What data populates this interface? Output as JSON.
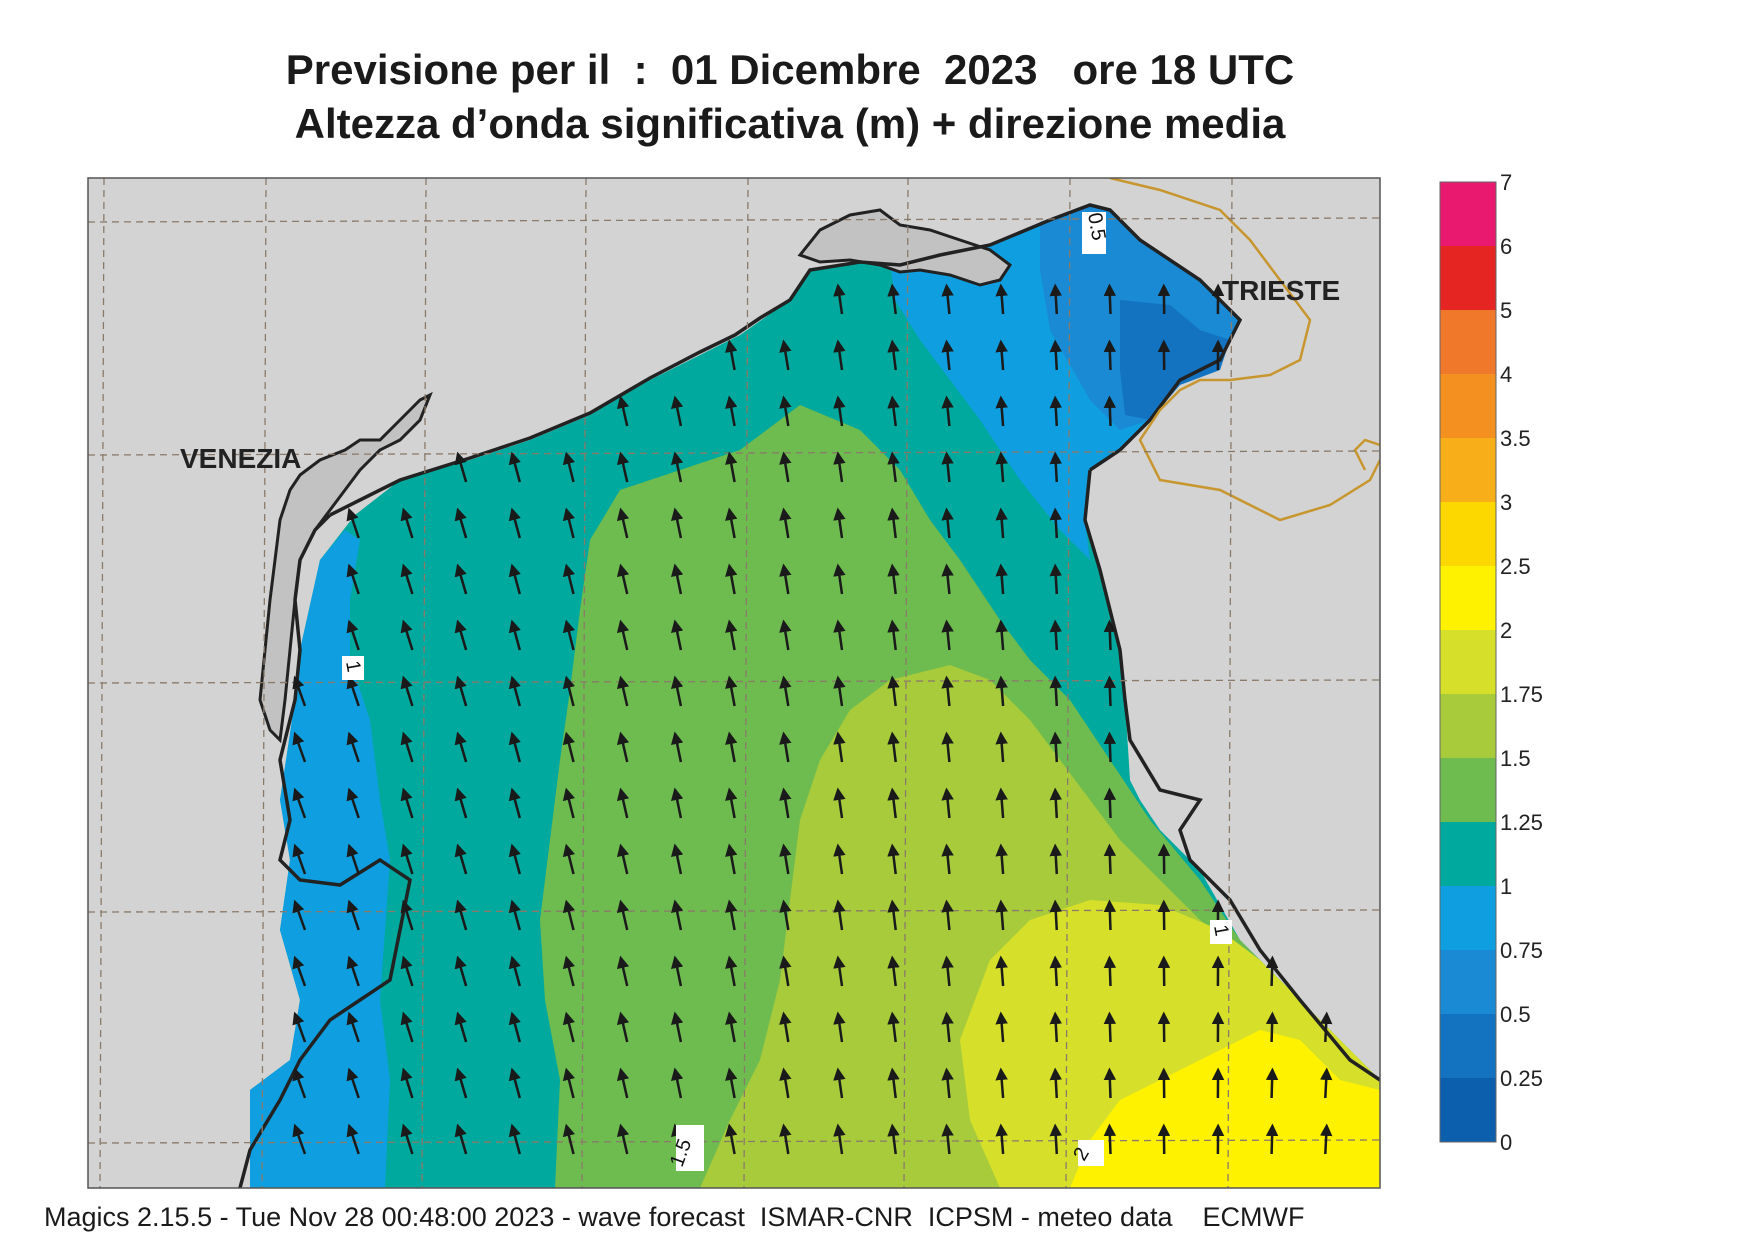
{
  "title": {
    "line1": "Previsione per il  :  01 Dicembre  2023   ore 18 UTC",
    "line2": "Altezza d’onda significativa (m) + direzione media"
  },
  "map": {
    "cities": [
      "VENEZIA",
      "TRIESTE"
    ],
    "contour_labels": [
      "0.5",
      "1",
      "1",
      "1.5",
      "2"
    ],
    "wave_direction": "north-northwest",
    "colors": {
      "land": "#d3d3d3",
      "border": "#c8962e",
      "coast": "#222222",
      "arrow": "#1a1a1a"
    }
  },
  "legend": {
    "labels": [
      "7",
      "6",
      "5",
      "4",
      "3.5",
      "3",
      "2.5",
      "2",
      "1.75",
      "1.5",
      "1.25",
      "1",
      "0.75",
      "0.5",
      "0.25",
      "0"
    ],
    "colors": [
      "#e8196e",
      "#e52522",
      "#f0782a",
      "#f3901f",
      "#f7ae18",
      "#fcd700",
      "#fff200",
      "#d6e02a",
      "#a8cb3b",
      "#6ebb4f",
      "#00a99d",
      "#0f9fe0",
      "#1a8ad4",
      "#1473c0",
      "#0b5fad"
    ]
  },
  "footer": "Magics 2.15.5 - Tue Nov 28 00:48:00 2023 - wave forecast  ISMAR-CNR  ICPSM - meteo data    ECMWF"
}
